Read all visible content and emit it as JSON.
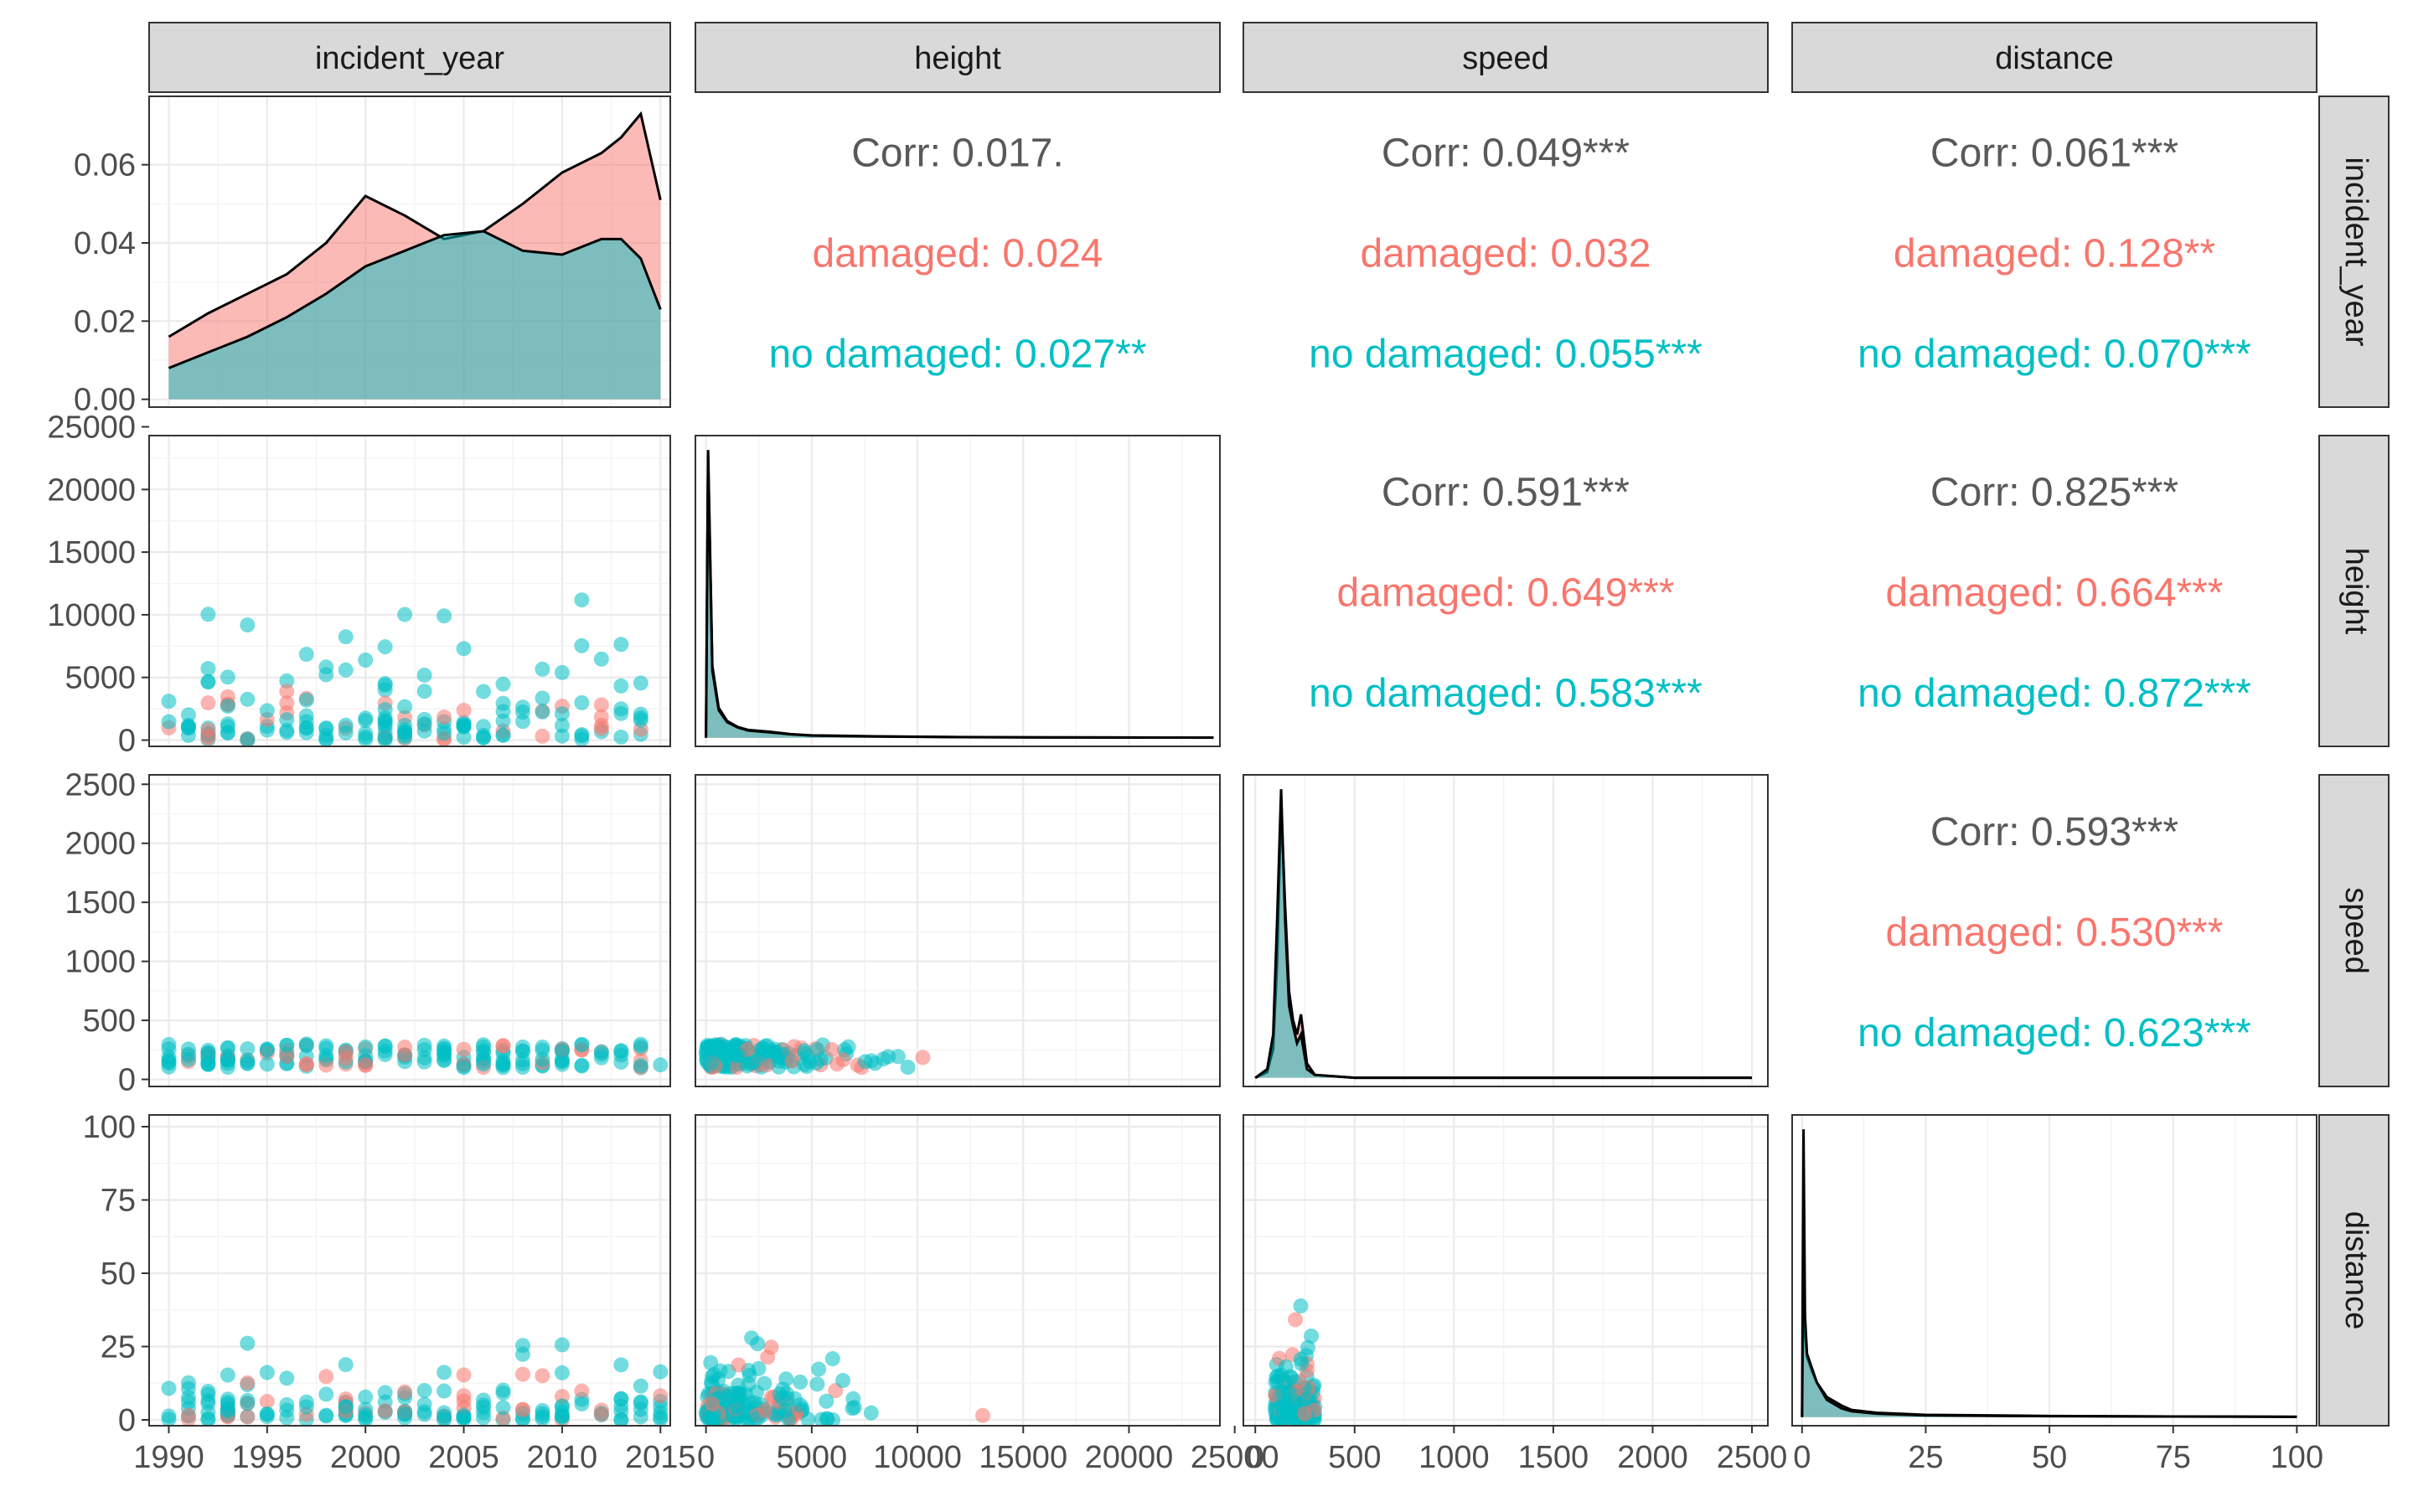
{
  "chart_data": {
    "type": "scatter",
    "title": "",
    "variables": [
      "incident_year",
      "height",
      "speed",
      "distance"
    ],
    "groups": [
      {
        "name": "damaged",
        "color": "#F8766D"
      },
      {
        "name": "no damaged",
        "color": "#00BFC4"
      }
    ],
    "axes": {
      "incident_year": {
        "lim": [
          1989,
          2015.5
        ],
        "ticks": [
          1990,
          1995,
          2000,
          2005,
          2010,
          2015
        ]
      },
      "height": {
        "lim": [
          -500,
          24300
        ],
        "ticks": [
          0,
          5000,
          10000,
          15000,
          20000,
          25000
        ]
      },
      "speed": {
        "lim": [
          -60,
          2580
        ],
        "ticks": [
          0,
          500,
          1000,
          1500,
          2000,
          2500
        ]
      },
      "distance": {
        "lim": [
          -2,
          104
        ],
        "ticks": [
          0,
          25,
          50,
          75,
          100
        ]
      },
      "density_y": {
        "lim": [
          -0.002,
          0.0775
        ],
        "ticks": [
          0.0,
          0.02,
          0.04,
          0.06
        ]
      }
    },
    "tick_labels": {
      "density_y": [
        "0.00",
        "0.02",
        "0.04",
        "0.06"
      ],
      "incident_year": [
        "1990",
        "1995",
        "2000",
        "2005",
        "2010",
        "2015"
      ],
      "height": [
        "0",
        "5000",
        "10000",
        "15000",
        "20000",
        "25000"
      ],
      "speed": [
        "0",
        "500",
        "1000",
        "1500",
        "2000",
        "2500"
      ],
      "distance": [
        "0",
        "25",
        "50",
        "75",
        "100"
      ]
    },
    "correlations": [
      {
        "row": "incident_year",
        "col": "height",
        "overall": "Corr: 0.017.",
        "damaged": "damaged: 0.024",
        "no_damaged": "no damaged: 0.027**"
      },
      {
        "row": "incident_year",
        "col": "speed",
        "overall": "Corr: 0.049***",
        "damaged": "damaged: 0.032",
        "no_damaged": "no damaged: 0.055***"
      },
      {
        "row": "incident_year",
        "col": "distance",
        "overall": "Corr: 0.061***",
        "damaged": "damaged: 0.128**",
        "no_damaged": "no damaged: 0.070***"
      },
      {
        "row": "height",
        "col": "speed",
        "overall": "Corr: 0.591***",
        "damaged": "damaged: 0.649***",
        "no_damaged": "no damaged: 0.583***"
      },
      {
        "row": "height",
        "col": "distance",
        "overall": "Corr: 0.825***",
        "damaged": "damaged: 0.664***",
        "no_damaged": "no damaged: 0.872***"
      },
      {
        "row": "speed",
        "col": "distance",
        "overall": "Corr: 0.593***",
        "damaged": "damaged: 0.530***",
        "no_damaged": "no damaged: 0.623***"
      }
    ],
    "densities": {
      "incident_year": {
        "x": [
          1990,
          1992,
          1994,
          1996,
          1998,
          2000,
          2002,
          2004,
          2006,
          2008,
          2010,
          2012,
          2013,
          2014,
          2015
        ],
        "damaged": [
          0.016,
          0.022,
          0.027,
          0.032,
          0.04,
          0.052,
          0.047,
          0.041,
          0.043,
          0.05,
          0.058,
          0.063,
          0.067,
          0.073,
          0.051
        ],
        "no_damaged": [
          0.008,
          0.012,
          0.016,
          0.021,
          0.027,
          0.034,
          0.038,
          0.042,
          0.043,
          0.038,
          0.037,
          0.041,
          0.041,
          0.036,
          0.023
        ]
      },
      "height": {
        "x": [
          0,
          100,
          300,
          600,
          1000,
          1500,
          2000,
          3000,
          4000,
          5000,
          8000,
          12000,
          16000,
          20000,
          24000
        ],
        "damaged": [
          0.0,
          24000,
          6000,
          2500,
          1400,
          900,
          650,
          500,
          300,
          200,
          120,
          60,
          30,
          20,
          10
        ],
        "no_damaged": [
          0.0,
          23500,
          5600,
          2300,
          1300,
          850,
          600,
          450,
          280,
          180,
          100,
          50,
          25,
          15,
          8
        ]
      },
      "speed": {
        "x": [
          0,
          60,
          90,
          110,
          130,
          150,
          170,
          190,
          210,
          230,
          260,
          300,
          500,
          1000,
          2500
        ],
        "damaged": [
          0.0,
          0.02,
          0.1,
          0.4,
          0.95,
          0.6,
          0.3,
          0.2,
          0.15,
          0.22,
          0.05,
          0.01,
          0.0,
          0.0,
          0.0
        ],
        "no_damaged": [
          0.0,
          0.03,
          0.15,
          0.55,
          1.0,
          0.55,
          0.25,
          0.18,
          0.12,
          0.15,
          0.03,
          0.01,
          0.0,
          0.0,
          0.0
        ]
      },
      "distance": {
        "x": [
          0,
          0.3,
          0.6,
          1,
          2,
          3,
          5,
          8,
          10,
          15,
          25,
          50,
          75,
          100
        ],
        "damaged": [
          0.0,
          0.5,
          0.3,
          0.21,
          0.16,
          0.12,
          0.07,
          0.04,
          0.025,
          0.015,
          0.008,
          0.004,
          0.002,
          0.001
        ],
        "no_damaged": [
          0.0,
          1.0,
          0.35,
          0.22,
          0.17,
          0.12,
          0.06,
          0.03,
          0.02,
          0.012,
          0.006,
          0.003,
          0.002,
          0.001
        ]
      }
    }
  }
}
